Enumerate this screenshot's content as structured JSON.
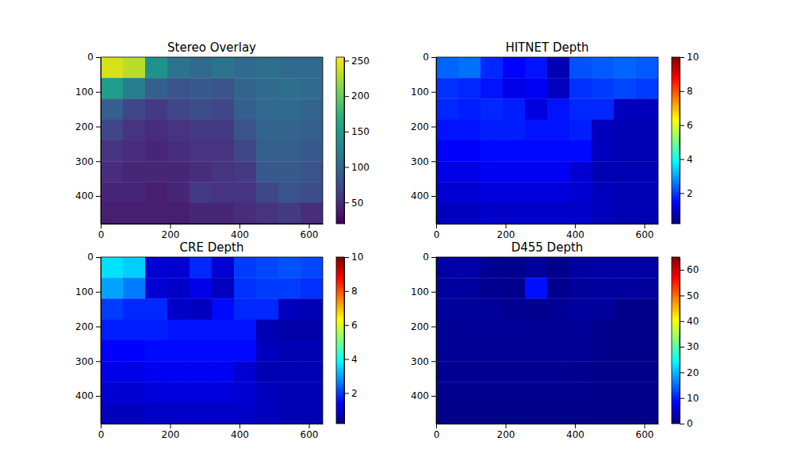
{
  "chart_data": [
    {
      "type": "heatmap",
      "title": "Stereo Overlay",
      "color": "viridis",
      "xlim": [
        0,
        640
      ],
      "ylim": [
        480,
        0
      ],
      "xticks": [
        0,
        200,
        400,
        600
      ],
      "yticks": [
        0,
        100,
        200,
        300,
        400
      ],
      "x_edges": [
        0,
        64,
        128,
        192,
        256,
        320,
        384,
        448,
        512,
        576,
        640
      ],
      "y_edges": [
        0,
        60,
        120,
        180,
        240,
        300,
        360,
        420,
        480
      ],
      "cells": [
        [
          240,
          230,
          140,
          110,
          100,
          110,
          100,
          105,
          100,
          100
        ],
        [
          150,
          120,
          90,
          80,
          85,
          80,
          95,
          100,
          105,
          100
        ],
        [
          90,
          70,
          60,
          70,
          75,
          70,
          90,
          100,
          100,
          95
        ],
        [
          70,
          55,
          50,
          55,
          60,
          60,
          80,
          95,
          95,
          90
        ],
        [
          55,
          50,
          45,
          50,
          55,
          55,
          70,
          90,
          90,
          85
        ],
        [
          50,
          45,
          45,
          45,
          50,
          55,
          60,
          85,
          85,
          80
        ],
        [
          45,
          45,
          40,
          45,
          60,
          55,
          55,
          70,
          80,
          75
        ],
        [
          40,
          40,
          40,
          40,
          45,
          45,
          50,
          55,
          60,
          50
        ]
      ],
      "colorbar_range": [
        20,
        255
      ],
      "colorbar_ticks": [
        50,
        100,
        150,
        200,
        250
      ]
    },
    {
      "type": "heatmap",
      "title": "HITNET Depth",
      "color": "jet",
      "xlim": [
        0,
        640
      ],
      "ylim": [
        480,
        0
      ],
      "xticks": [
        0,
        200,
        400,
        600
      ],
      "yticks": [
        0,
        100,
        200,
        300,
        400
      ],
      "x_edges": [
        0,
        64,
        128,
        192,
        256,
        320,
        384,
        448,
        512,
        576,
        640
      ],
      "y_edges": [
        0,
        60,
        120,
        180,
        240,
        300,
        360,
        420,
        480
      ],
      "cells": [
        [
          2.4,
          2.5,
          1.8,
          1.4,
          1.6,
          0.7,
          2.2,
          2.3,
          2.4,
          2.3
        ],
        [
          1.9,
          1.8,
          1.6,
          1.2,
          1.3,
          0.8,
          1.9,
          2.0,
          2.1,
          2.0
        ],
        [
          1.8,
          1.7,
          1.8,
          1.7,
          1.1,
          1.6,
          1.8,
          1.8,
          0.8,
          0.8
        ],
        [
          1.6,
          1.6,
          1.7,
          1.7,
          1.6,
          1.6,
          1.7,
          0.8,
          0.7,
          0.7
        ],
        [
          1.4,
          1.4,
          1.5,
          1.5,
          1.5,
          1.5,
          1.5,
          0.8,
          0.7,
          0.7
        ],
        [
          1.2,
          1.2,
          1.3,
          1.3,
          1.3,
          1.3,
          1.0,
          0.7,
          0.7,
          0.7
        ],
        [
          1.0,
          1.0,
          1.1,
          1.1,
          1.1,
          1.1,
          1.0,
          0.8,
          0.7,
          0.7
        ],
        [
          0.8,
          0.8,
          0.9,
          0.9,
          0.9,
          0.9,
          0.9,
          0.8,
          0.7,
          0.7
        ]
      ],
      "colorbar_range": [
        0.2,
        10
      ],
      "colorbar_ticks": [
        2,
        4,
        6,
        8,
        10
      ]
    },
    {
      "type": "heatmap",
      "title": "CRE Depth",
      "color": "jet",
      "xlim": [
        0,
        640
      ],
      "ylim": [
        480,
        0
      ],
      "xticks": [
        0,
        200,
        400,
        600
      ],
      "yticks": [
        0,
        100,
        200,
        300,
        400
      ],
      "x_edges": [
        0,
        64,
        128,
        192,
        256,
        320,
        384,
        448,
        512,
        576,
        640
      ],
      "y_edges": [
        0,
        60,
        120,
        180,
        240,
        300,
        360,
        420,
        480
      ],
      "cells": [
        [
          3.6,
          3.4,
          1.0,
          1.0,
          1.8,
          1.0,
          2.0,
          2.1,
          2.2,
          2.1
        ],
        [
          3.0,
          2.6,
          1.0,
          0.9,
          1.2,
          0.8,
          1.9,
          2.0,
          2.0,
          1.9
        ],
        [
          2.0,
          1.8,
          1.8,
          0.9,
          0.8,
          1.5,
          1.8,
          1.8,
          0.8,
          0.7
        ],
        [
          1.7,
          1.7,
          1.7,
          1.6,
          1.6,
          1.6,
          1.6,
          0.7,
          0.6,
          0.6
        ],
        [
          1.4,
          1.4,
          1.5,
          1.5,
          1.5,
          1.5,
          1.5,
          0.8,
          0.7,
          0.7
        ],
        [
          1.2,
          1.2,
          1.3,
          1.3,
          1.3,
          1.3,
          1.0,
          0.7,
          0.7,
          0.7
        ],
        [
          1.0,
          1.0,
          1.1,
          1.1,
          1.1,
          1.1,
          1.0,
          0.8,
          0.7,
          0.7
        ],
        [
          0.8,
          0.8,
          0.9,
          0.9,
          0.9,
          0.9,
          0.9,
          0.8,
          0.7,
          0.7
        ]
      ],
      "colorbar_range": [
        0.2,
        10
      ],
      "colorbar_ticks": [
        2,
        4,
        6,
        8,
        10
      ]
    },
    {
      "type": "heatmap",
      "title": "D455 Depth",
      "color": "jet",
      "xlim": [
        0,
        640
      ],
      "ylim": [
        480,
        0
      ],
      "xticks": [
        0,
        200,
        400,
        600
      ],
      "yticks": [
        0,
        100,
        200,
        300,
        400
      ],
      "x_edges": [
        0,
        64,
        128,
        192,
        256,
        320,
        384,
        448,
        512,
        576,
        640
      ],
      "y_edges": [
        0,
        60,
        120,
        180,
        240,
        300,
        360,
        420,
        480
      ],
      "cells": [
        [
          2.5,
          2.6,
          1.2,
          1.0,
          1.8,
          0.8,
          2.2,
          2.3,
          2.4,
          2.3
        ],
        [
          2.0,
          1.9,
          1.1,
          1.0,
          9.0,
          0.9,
          1.9,
          2.0,
          2.0,
          1.9
        ],
        [
          1.8,
          1.7,
          1.7,
          1.2,
          1.0,
          1.5,
          1.8,
          1.8,
          0.8,
          0.8
        ],
        [
          1.6,
          1.6,
          1.6,
          1.6,
          1.5,
          1.5,
          1.6,
          0.8,
          0.7,
          0.7
        ],
        [
          1.4,
          1.4,
          1.4,
          1.4,
          1.4,
          1.4,
          1.4,
          0.8,
          0.7,
          0.7
        ],
        [
          1.2,
          1.2,
          1.2,
          1.2,
          1.2,
          1.2,
          1.0,
          0.7,
          0.7,
          0.7
        ],
        [
          1.0,
          1.0,
          1.0,
          1.0,
          1.0,
          1.0,
          0.9,
          0.8,
          0.7,
          0.7
        ],
        [
          0.8,
          0.8,
          0.8,
          0.8,
          0.8,
          0.8,
          0.8,
          0.7,
          0.7,
          0.7
        ]
      ],
      "colorbar_range": [
        0,
        65
      ],
      "colorbar_ticks": [
        0,
        10,
        20,
        30,
        40,
        50,
        60
      ]
    }
  ]
}
